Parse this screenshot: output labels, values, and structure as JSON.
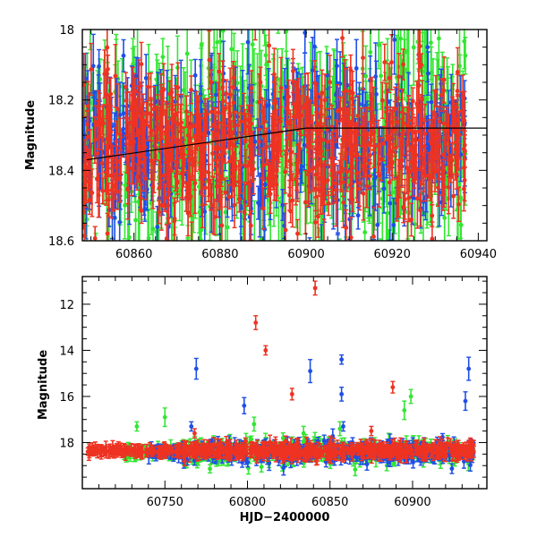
{
  "chart_data": [
    {
      "type": "scatter",
      "panel": "top",
      "title": "",
      "xlabel": "",
      "ylabel": "Magnitude",
      "xlim": [
        60848,
        60942
      ],
      "ylim": [
        18.6,
        18.0
      ],
      "y_inverted": true,
      "grid": false,
      "legend": "none",
      "error_bars": true,
      "x_ticks": [
        60860,
        60880,
        60900,
        60920,
        60940
      ],
      "x_tick_labels": [
        "60860",
        "60880",
        "60900",
        "60920",
        "60940"
      ],
      "y_ticks": [
        18.0,
        18.2,
        18.4,
        18.6
      ],
      "y_tick_labels": [
        "18",
        "18.2",
        "18.4",
        "18.6"
      ],
      "series": [
        {
          "color": "#33e633",
          "x_range": [
            60848,
            60937
          ],
          "typical_y": 18.33,
          "scatter": 0.14,
          "typical_err": 0.1,
          "approx_points": 520
        },
        {
          "color": "#1f4fe6",
          "x_range": [
            60848,
            60937
          ],
          "typical_y": 18.33,
          "scatter": 0.11,
          "typical_err": 0.07,
          "approx_points": 420
        },
        {
          "color": "#ee3322",
          "x_range": [
            60848,
            60937
          ],
          "typical_y": 18.33,
          "scatter": 0.11,
          "typical_err": 0.06,
          "approx_points": 620
        }
      ],
      "trend_line": {
        "color": "#000000",
        "x": [
          60849,
          60900,
          60942
        ],
        "y": [
          18.37,
          18.28,
          18.28
        ]
      }
    },
    {
      "type": "scatter",
      "panel": "bottom",
      "title": "",
      "xlabel": "HJD−2400000",
      "ylabel": "Magnitude",
      "xlim": [
        60700,
        60945
      ],
      "ylim": [
        20.0,
        10.8
      ],
      "y_inverted": true,
      "grid": false,
      "legend": "none",
      "error_bars": true,
      "x_ticks": [
        60750,
        60800,
        60850,
        60900
      ],
      "x_tick_labels": [
        "60750",
        "60800",
        "60850",
        "60900"
      ],
      "y_ticks": [
        12,
        14,
        16,
        18
      ],
      "y_tick_labels": [
        "12",
        "14",
        "16",
        "18"
      ],
      "series": [
        {
          "color": "#33e633",
          "x_range": [
            60725,
            60937
          ],
          "typical_y": 18.4,
          "scatter": 0.6
        },
        {
          "color": "#1f4fe6",
          "x_range": [
            60740,
            60937
          ],
          "typical_y": 18.4,
          "scatter": 0.5
        },
        {
          "color": "#ee3322",
          "x_range": [
            60703,
            60937
          ],
          "typical_y": 18.35,
          "scatter": 0.35
        }
      ],
      "outliers": [
        {
          "color": "#ee3322",
          "x": 60841,
          "y": 11.3,
          "err": 0.3
        },
        {
          "color": "#ee3322",
          "x": 60805,
          "y": 12.8,
          "err": 0.3
        },
        {
          "color": "#ee3322",
          "x": 60811,
          "y": 14.0,
          "err": 0.2
        },
        {
          "color": "#ee3322",
          "x": 60827,
          "y": 15.9,
          "err": 0.25
        },
        {
          "color": "#ee3322",
          "x": 60888,
          "y": 15.6,
          "err": 0.25
        },
        {
          "color": "#ee3322",
          "x": 60768,
          "y": 17.6,
          "err": 0.2
        },
        {
          "color": "#ee3322",
          "x": 60875,
          "y": 17.5,
          "err": 0.2
        },
        {
          "color": "#1f4fe6",
          "x": 60769,
          "y": 14.8,
          "err": 0.45
        },
        {
          "color": "#1f4fe6",
          "x": 60838,
          "y": 14.9,
          "err": 0.5
        },
        {
          "color": "#1f4fe6",
          "x": 60857,
          "y": 14.4,
          "err": 0.2
        },
        {
          "color": "#1f4fe6",
          "x": 60798,
          "y": 16.4,
          "err": 0.35
        },
        {
          "color": "#1f4fe6",
          "x": 60857,
          "y": 15.9,
          "err": 0.3
        },
        {
          "color": "#1f4fe6",
          "x": 60766,
          "y": 17.3,
          "err": 0.2
        },
        {
          "color": "#1f4fe6",
          "x": 60934,
          "y": 14.8,
          "err": 0.5
        },
        {
          "color": "#1f4fe6",
          "x": 60932,
          "y": 16.2,
          "err": 0.4
        },
        {
          "color": "#1f4fe6",
          "x": 60858,
          "y": 17.3,
          "err": 0.2
        },
        {
          "color": "#33e633",
          "x": 60750,
          "y": 16.9,
          "err": 0.4
        },
        {
          "color": "#33e633",
          "x": 60733,
          "y": 17.3,
          "err": 0.2
        },
        {
          "color": "#33e633",
          "x": 60899,
          "y": 16.0,
          "err": 0.3
        },
        {
          "color": "#33e633",
          "x": 60895,
          "y": 16.6,
          "err": 0.4
        },
        {
          "color": "#33e633",
          "x": 60804,
          "y": 17.2,
          "err": 0.3
        },
        {
          "color": "#33e633",
          "x": 60856,
          "y": 17.4,
          "err": 0.3
        }
      ]
    }
  ]
}
